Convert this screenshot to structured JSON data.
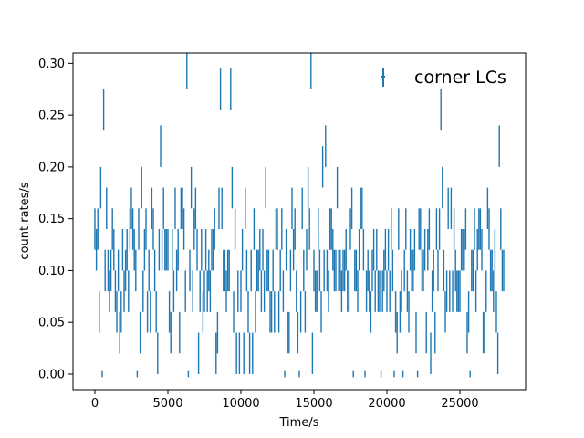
{
  "chart_data": {
    "type": "scatter",
    "title": "",
    "xlabel": "Time/s",
    "ylabel": "count rates/s",
    "xlim": [
      -1500,
      29500
    ],
    "ylim": [
      -0.015,
      0.31
    ],
    "xticks": [
      0,
      5000,
      10000,
      15000,
      20000,
      25000
    ],
    "xtick_labels": [
      "0",
      "5000",
      "10000",
      "15000",
      "20000",
      "25000"
    ],
    "yticks": [
      0.0,
      0.05,
      0.1,
      0.15,
      0.2,
      0.25,
      0.3
    ],
    "ytick_labels": [
      "0.00",
      "0.05",
      "0.10",
      "0.15",
      "0.20",
      "0.25",
      "0.30"
    ],
    "grid": false,
    "legend": {
      "placement": "top-right",
      "entries": [
        "corner LCs"
      ]
    },
    "series": [
      {
        "name": "corner LCs",
        "color": "#1f77b4",
        "marker": "errorbar",
        "x_range": [
          0,
          28000
        ],
        "bin_size_s": 100,
        "mean_rate": 0.1,
        "min_rate": 0.0,
        "max_rate": 0.295,
        "errorbar_halfwidth": 0.02,
        "notable_peaks": [
          {
            "x": 6300,
            "y": 0.295
          },
          {
            "x": 8600,
            "y": 0.275
          },
          {
            "x": 9300,
            "y": 0.275
          },
          {
            "x": 14800,
            "y": 0.295
          },
          {
            "x": 600,
            "y": 0.255
          },
          {
            "x": 23700,
            "y": 0.255
          },
          {
            "x": 4500,
            "y": 0.22
          },
          {
            "x": 27700,
            "y": 0.22
          }
        ],
        "notable_lows": [
          {
            "x": 500,
            "y": 0.0
          },
          {
            "x": 2900,
            "y": 0.0
          },
          {
            "x": 6400,
            "y": 0.0
          },
          {
            "x": 14000,
            "y": 0.0
          },
          {
            "x": 19600,
            "y": 0.0
          },
          {
            "x": 22100,
            "y": 0.0
          }
        ]
      }
    ]
  }
}
